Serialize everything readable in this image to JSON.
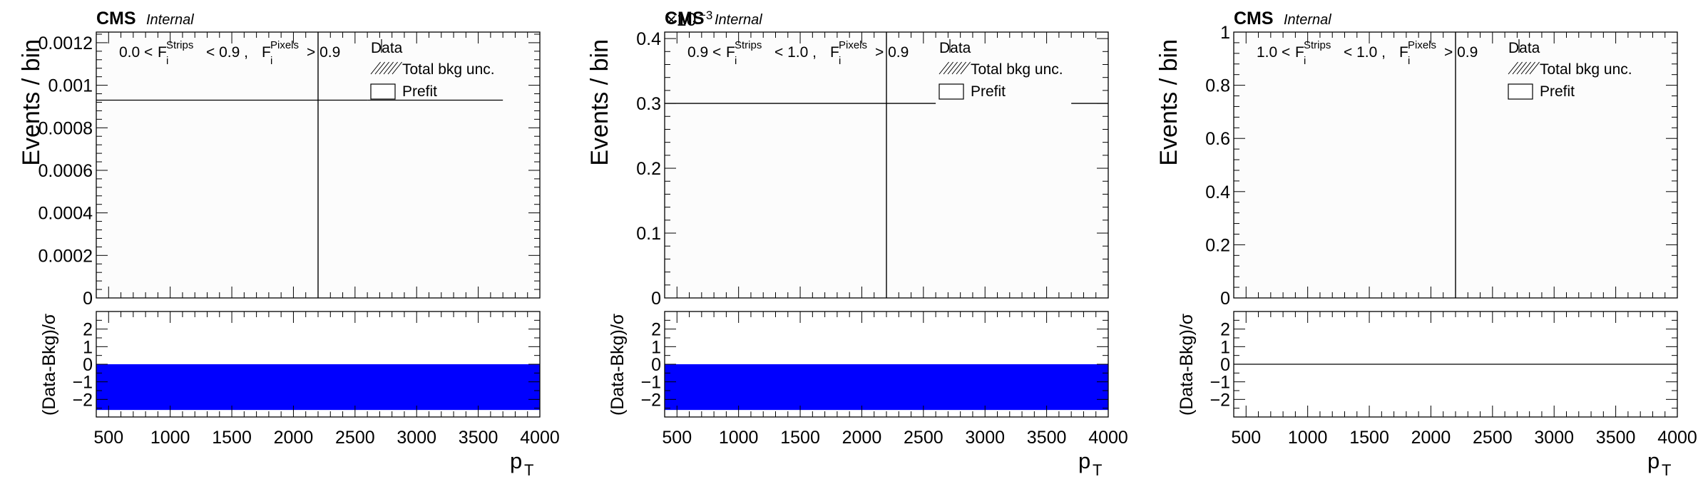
{
  "figure": {
    "colors": {
      "frame": "#000000",
      "upper_fill": "#fcfcfc",
      "ratio_band": "#0000ff",
      "data_line": "#000000"
    }
  },
  "chart_data": [
    {
      "type": "line",
      "cms_label": "CMS",
      "cms_sublabel": "Internal",
      "exponent_label": "",
      "category_text": {
        "lo": "0.0",
        "mid": "0.9",
        "hi": "0.9",
        "f_strips": "F",
        "f_pixels": "F",
        "sub": "i",
        "sup_strips": "Strips",
        "sup_pixels": "Pixels"
      },
      "legend": {
        "data": "Data",
        "unc": "Total bkg unc.",
        "prefit": "Prefit",
        "placement": "top-right"
      },
      "ylabel": "Events / bin",
      "ratio_ylabel": "(Data-Bkg)/σ",
      "xlabel": "p",
      "xlabel_sub": "T",
      "show_xticklabels": true,
      "xlim": [
        400,
        4000
      ],
      "ylim": [
        0,
        0.00125
      ],
      "yticks": [
        0,
        0.0002,
        0.0004,
        0.0006,
        0.0008,
        0.001,
        0.0012
      ],
      "yticklabels": [
        "0",
        "0.0002",
        "0.0004",
        "0.0006",
        "0.0008",
        "0.001",
        "0.0012"
      ],
      "xticks": [
        500,
        1000,
        1500,
        2000,
        2500,
        3000,
        3500,
        4000
      ],
      "xticklabels": [
        "500",
        "1000",
        "1500",
        "2000",
        "2500",
        "3000",
        "3500",
        "4000"
      ],
      "prefit_steps": [
        [
          400,
          2600,
          0.00093
        ],
        [
          2600,
          3700,
          0.00093
        ]
      ],
      "data_line_x": 2200,
      "ratio_ylim": [
        -3,
        3
      ],
      "ratio_yticks": [
        -2,
        -1,
        0,
        1,
        2
      ],
      "ratio_yticklabels": [
        "−2",
        "−1",
        "0",
        "1",
        "2"
      ],
      "ratio_band": [
        400,
        4000,
        -2.6,
        0
      ]
    },
    {
      "type": "line",
      "cms_label": "CMS",
      "cms_sublabel": "Internal",
      "exponent_label": "×10",
      "exponent_power": "−3",
      "category_text": {
        "lo": "0.9",
        "mid": "1.0",
        "hi": "0.9",
        "f_strips": "F",
        "f_pixels": "F",
        "sub": "i",
        "sup_strips": "Strips",
        "sup_pixels": "Pixels"
      },
      "legend": {
        "data": "Data",
        "unc": "Total bkg unc.",
        "prefit": "Prefit",
        "placement": "top-right"
      },
      "ylabel": "Events / bin",
      "ratio_ylabel": "(Data-Bkg)/σ",
      "xlabel": "p",
      "xlabel_sub": "T",
      "show_xticklabels": true,
      "xlim": [
        400,
        4000
      ],
      "ylim": [
        0,
        0.41
      ],
      "yticks": [
        0,
        0.1,
        0.2,
        0.3,
        0.4
      ],
      "yticklabels": [
        "0",
        "0.1",
        "0.2",
        "0.3",
        "0.4"
      ],
      "xticks": [
        500,
        1000,
        1500,
        2000,
        2500,
        3000,
        3500,
        4000
      ],
      "xticklabels": [
        "500",
        "1000",
        "1500",
        "2000",
        "2500",
        "3000",
        "3500",
        "4000"
      ],
      "prefit_steps": [
        [
          400,
          2600,
          0.3
        ],
        [
          3700,
          4000,
          0.3
        ]
      ],
      "data_line_x": 2200,
      "ratio_ylim": [
        -3,
        3
      ],
      "ratio_yticks": [
        -2,
        -1,
        0,
        1,
        2
      ],
      "ratio_yticklabels": [
        "−2",
        "−1",
        "0",
        "1",
        "2"
      ],
      "ratio_band": [
        400,
        4000,
        -2.6,
        0
      ]
    },
    {
      "type": "line",
      "cms_label": "CMS",
      "cms_sublabel": "Internal",
      "exponent_label": "",
      "category_text": {
        "lo": "1.0",
        "mid": "1.0",
        "hi": "0.9",
        "f_strips": "F",
        "f_pixels": "F",
        "sub": "i",
        "sup_strips": "Strips",
        "sup_pixels": "Pixels"
      },
      "legend": {
        "data": "Data",
        "unc": "Total bkg unc.",
        "prefit": "Prefit",
        "placement": "top-right"
      },
      "ylabel": "Events / bin",
      "ratio_ylabel": "(Data-Bkg)/σ",
      "xlabel": "p",
      "xlabel_sub": "T",
      "show_xticklabels": true,
      "xlim": [
        400,
        4000
      ],
      "ylim": [
        0,
        1
      ],
      "yticks": [
        0,
        0.2,
        0.4,
        0.6,
        0.8,
        1
      ],
      "yticklabels": [
        "0",
        "0.2",
        "0.4",
        "0.6",
        "0.8",
        "1"
      ],
      "xticks": [
        500,
        1000,
        1500,
        2000,
        2500,
        3000,
        3500,
        4000
      ],
      "xticklabels": [
        "500",
        "1000",
        "1500",
        "2000",
        "2500",
        "3000",
        "3500",
        "4000"
      ],
      "prefit_steps": [],
      "data_line_x": 2200,
      "ratio_ylim": [
        -3,
        3
      ],
      "ratio_yticks": [
        -2,
        -1,
        0,
        1,
        2
      ],
      "ratio_yticklabels": [
        "−2",
        "−1",
        "0",
        "1",
        "2"
      ],
      "ratio_line": 0,
      "ratio_band": null
    }
  ]
}
